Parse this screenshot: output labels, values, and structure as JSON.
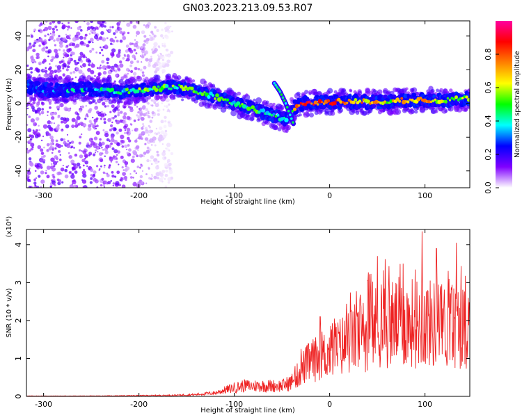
{
  "title": "GN03.2023.213.09.53.R07",
  "chart_data": [
    {
      "type": "heatmap",
      "title": "",
      "xlabel": "Height of straight line (km)",
      "ylabel": "Frequency (Hz)",
      "xlim": [
        -318,
        147
      ],
      "ylim": [
        -50,
        49
      ],
      "xticks": [
        "-300",
        "-200",
        "-100",
        "0",
        "100"
      ],
      "xtick_values": [
        -300,
        -200,
        -100,
        0,
        100
      ],
      "yticks": [
        "-40",
        "-20",
        "0",
        "20",
        "40"
      ],
      "ytick_values": [
        -40,
        -20,
        0,
        20,
        40
      ],
      "colorbar": {
        "label": "Normalized spectral amplitude",
        "range": [
          0,
          1
        ],
        "ticks": [
          "0.0",
          "0.2",
          "0.4",
          "0.6",
          "0.8"
        ],
        "tick_values": [
          0.0,
          0.2,
          0.4,
          0.6,
          0.8
        ],
        "colors": [
          "#ffffff",
          "#8000ff",
          "#0000ff",
          "#00ffff",
          "#00ff00",
          "#ffff00",
          "#ff8000",
          "#ff0000",
          "#ff00a0"
        ]
      },
      "ridge": {
        "x": [
          -315,
          -300,
          -280,
          -260,
          -240,
          -220,
          -200,
          -180,
          -160,
          -140,
          -120,
          -100,
          -80,
          -60,
          -45,
          -38,
          -30,
          -20,
          0,
          20,
          40,
          60,
          80,
          100,
          120,
          147
        ],
        "y": [
          10,
          8,
          8,
          9,
          8,
          7,
          8,
          9,
          10,
          7,
          4,
          0,
          -3,
          -7,
          -10,
          -3,
          0,
          0,
          1,
          1,
          1,
          1,
          2,
          2,
          2,
          3
        ],
        "amplitude": [
          0.2,
          0.25,
          0.3,
          0.35,
          0.35,
          0.4,
          0.5,
          0.5,
          0.5,
          0.45,
          0.45,
          0.45,
          0.45,
          0.4,
          0.35,
          0.6,
          0.85,
          0.85,
          0.8,
          0.7,
          0.7,
          0.6,
          0.7,
          0.7,
          0.6,
          0.6
        ]
      },
      "branch": {
        "x": [
          -58,
          -52,
          -46,
          -42,
          -38
        ],
        "y": [
          12,
          7,
          0,
          -6,
          -12
        ]
      },
      "noise_region_x": [
        -318,
        -165
      ]
    },
    {
      "type": "line",
      "title": "",
      "xlabel": "Height of straight line (km)",
      "ylabel": "SNR (10 * v/v)",
      "y_multiplier": "(x10⁴)",
      "xlim": [
        -318,
        147
      ],
      "ylim": [
        0,
        4.4
      ],
      "xticks": [
        "-300",
        "-200",
        "-100",
        "0",
        "100"
      ],
      "xtick_values": [
        -300,
        -200,
        -100,
        0,
        100
      ],
      "yticks": [
        "0",
        "1",
        "2",
        "3",
        "4"
      ],
      "ytick_values": [
        0,
        1,
        2,
        3,
        4
      ],
      "color": "#ee2222",
      "series": [
        {
          "x": [
            -318,
            -250,
            -200,
            -160,
            -140,
            -120,
            -110,
            -100,
            -90,
            -80,
            -70,
            -60,
            -50,
            -40,
            -35,
            -30,
            -25,
            -20,
            -10,
            0,
            10,
            20,
            30,
            40,
            50,
            60,
            70,
            80,
            90,
            100,
            110,
            120,
            130,
            140,
            147
          ],
          "y": [
            0.01,
            0.01,
            0.02,
            0.03,
            0.05,
            0.1,
            0.18,
            0.25,
            0.3,
            0.3,
            0.3,
            0.3,
            0.3,
            0.4,
            0.55,
            0.75,
            0.9,
            1.0,
            1.1,
            1.25,
            1.4,
            1.55,
            1.7,
            1.85,
            2.0,
            2.05,
            2.1,
            2.1,
            2.1,
            2.1,
            2.05,
            2.0,
            2.0,
            2.0,
            2.0
          ],
          "peaks": [
            {
              "x": -30,
              "y": 1.25
            },
            {
              "x": -10,
              "y": 2.1
            },
            {
              "x": 5,
              "y": 2.05
            },
            {
              "x": 40,
              "y": 3.05
            },
            {
              "x": 50,
              "y": 3.7
            },
            {
              "x": 77,
              "y": 3.5
            },
            {
              "x": 97,
              "y": 4.35
            },
            {
              "x": 112,
              "y": 3.9
            },
            {
              "x": 133,
              "y": 4.05
            }
          ]
        }
      ]
    }
  ]
}
